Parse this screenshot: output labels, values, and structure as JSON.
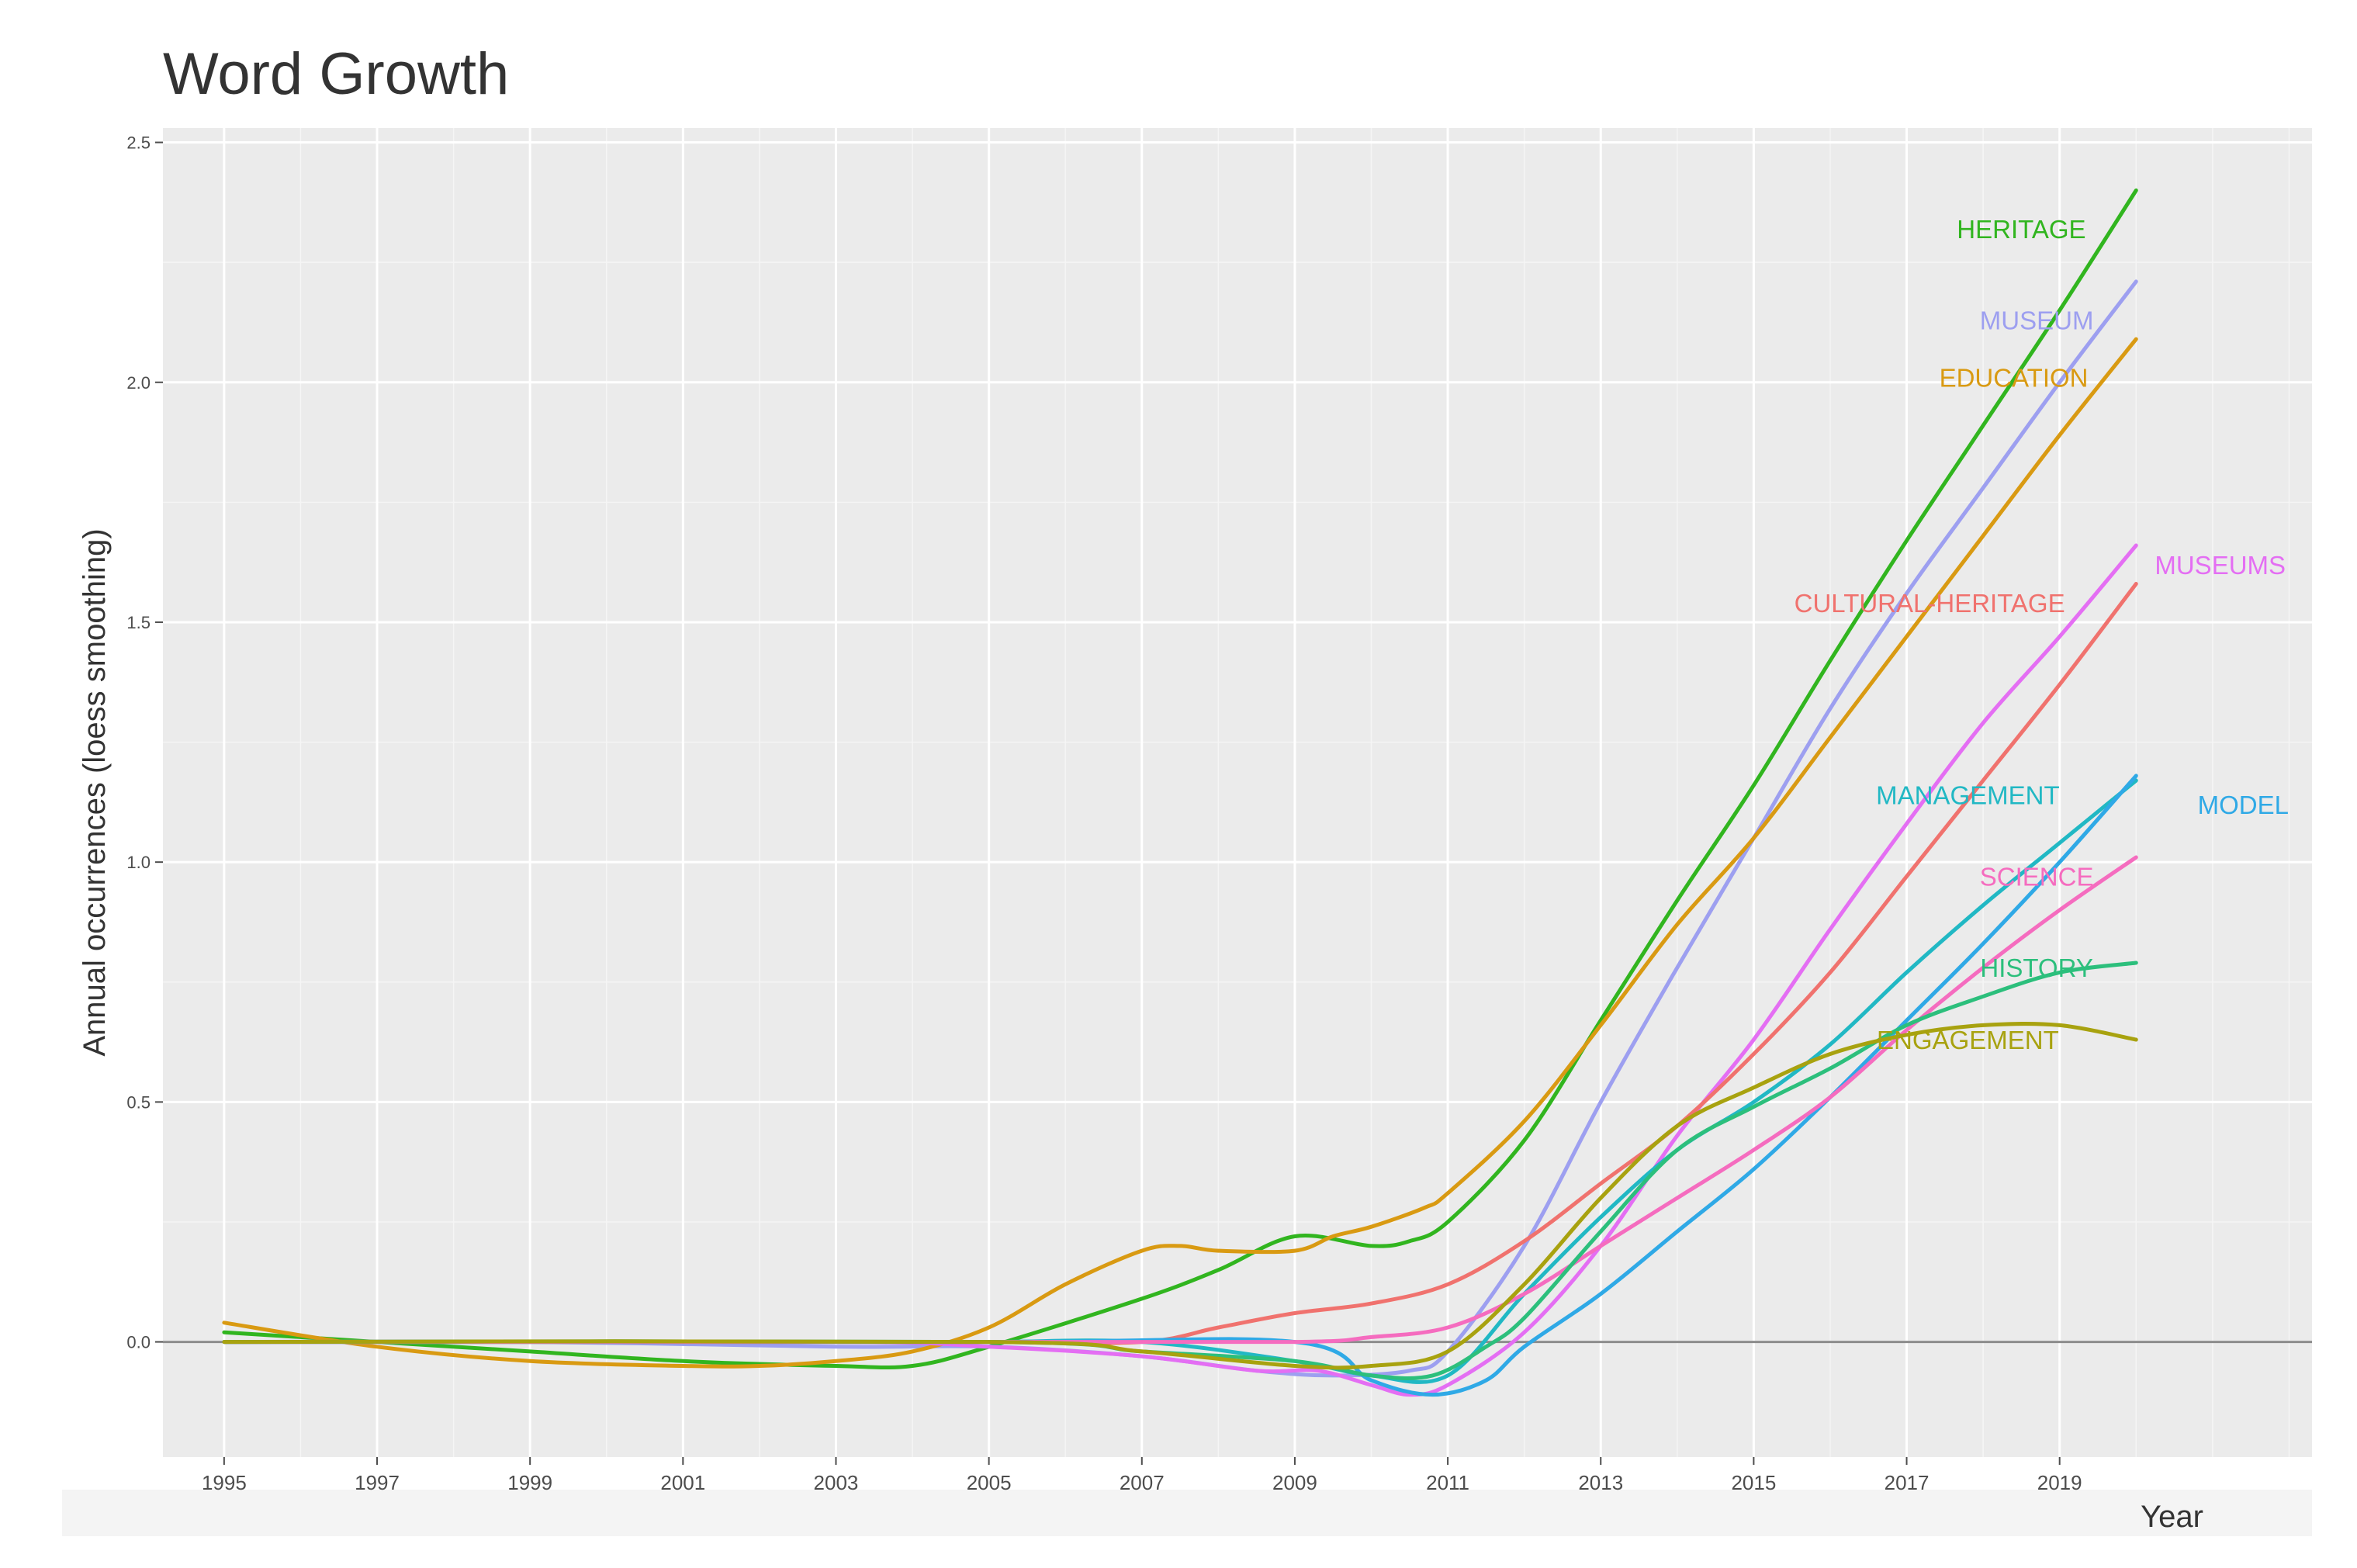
{
  "chart_data": {
    "type": "line",
    "title": "Word Growth",
    "xlabel": "Year",
    "ylabel": "Annual occurrences (loess smoothing)",
    "xlim": [
      1994.2,
      2022.3
    ],
    "ylim": [
      -0.24,
      2.53
    ],
    "x_ticks": [
      "1995",
      "1997",
      "1999",
      "2001",
      "2003",
      "2005",
      "2007",
      "2009",
      "2011",
      "2013",
      "2015",
      "2017",
      "2019"
    ],
    "y_ticks": [
      "0.0",
      "0.5",
      "1.0",
      "1.5",
      "2.0",
      "2.5"
    ],
    "reference_line_y": 0,
    "series": [
      {
        "name": "HERITAGE",
        "color": "#31b51f",
        "points": [
          [
            1995,
            0.02
          ],
          [
            1997,
            0
          ],
          [
            1999,
            -0.02
          ],
          [
            2001,
            -0.04
          ],
          [
            2003,
            -0.05
          ],
          [
            2004,
            -0.05
          ],
          [
            2005,
            -0.01
          ],
          [
            2007,
            0.09
          ],
          [
            2008,
            0.15
          ],
          [
            2009,
            0.22
          ],
          [
            2010,
            0.2
          ],
          [
            2010.5,
            0.21
          ],
          [
            2011,
            0.25
          ],
          [
            2012,
            0.42
          ],
          [
            2013,
            0.67
          ],
          [
            2014,
            0.92
          ],
          [
            2015,
            1.16
          ],
          [
            2016,
            1.42
          ],
          [
            2017,
            1.67
          ],
          [
            2018,
            1.91
          ],
          [
            2019,
            2.15
          ],
          [
            2020,
            2.4
          ]
        ],
        "label_pos": [
          2018.5,
          2.32
        ],
        "label_anchor": "middle"
      },
      {
        "name": "MUSEUM",
        "color": "#9d9ff0",
        "points": [
          [
            1995,
            0
          ],
          [
            1999,
            0
          ],
          [
            2003,
            -0.01
          ],
          [
            2005,
            -0.01
          ],
          [
            2007,
            -0.03
          ],
          [
            2008.5,
            -0.06
          ],
          [
            2009.5,
            -0.07
          ],
          [
            2010.5,
            -0.06
          ],
          [
            2011,
            -0.02
          ],
          [
            2012,
            0.2
          ],
          [
            2013,
            0.5
          ],
          [
            2014,
            0.78
          ],
          [
            2015,
            1.05
          ],
          [
            2016,
            1.32
          ],
          [
            2017,
            1.56
          ],
          [
            2018,
            1.78
          ],
          [
            2019,
            2
          ],
          [
            2020,
            2.21
          ]
        ],
        "label_pos": [
          2018.7,
          2.13
        ],
        "label_anchor": "middle"
      },
      {
        "name": "EDUCATION",
        "color": "#d99a12",
        "points": [
          [
            1995,
            0.04
          ],
          [
            1997,
            -0.01
          ],
          [
            1999,
            -0.04
          ],
          [
            2001,
            -0.05
          ],
          [
            2002,
            -0.05
          ],
          [
            2003,
            -0.04
          ],
          [
            2004,
            -0.02
          ],
          [
            2005,
            0.03
          ],
          [
            2006,
            0.12
          ],
          [
            2007,
            0.19
          ],
          [
            2007.5,
            0.2
          ],
          [
            2008,
            0.19
          ],
          [
            2009,
            0.19
          ],
          [
            2009.5,
            0.22
          ],
          [
            2010,
            0.24
          ],
          [
            2010.7,
            0.28
          ],
          [
            2011,
            0.31
          ],
          [
            2012,
            0.46
          ],
          [
            2013,
            0.66
          ],
          [
            2014,
            0.87
          ],
          [
            2015,
            1.05
          ],
          [
            2016,
            1.26
          ],
          [
            2017,
            1.47
          ],
          [
            2018,
            1.68
          ],
          [
            2019,
            1.89
          ],
          [
            2020,
            2.09
          ]
        ],
        "label_pos": [
          2018.4,
          2.01
        ],
        "label_anchor": "middle"
      },
      {
        "name": "MUSEUMS",
        "color": "#e46ef3",
        "points": [
          [
            1995,
            0
          ],
          [
            2003,
            0
          ],
          [
            2005,
            -0.01
          ],
          [
            2007,
            -0.03
          ],
          [
            2008.5,
            -0.06
          ],
          [
            2009.3,
            -0.06
          ],
          [
            2010,
            -0.09
          ],
          [
            2010.5,
            -0.11
          ],
          [
            2011,
            -0.09
          ],
          [
            2012,
            0.02
          ],
          [
            2013,
            0.2
          ],
          [
            2014,
            0.43
          ],
          [
            2015,
            0.63
          ],
          [
            2016,
            0.86
          ],
          [
            2017,
            1.08
          ],
          [
            2018,
            1.29
          ],
          [
            2019,
            1.47
          ],
          [
            2020,
            1.66
          ]
        ],
        "label_pos": [
          2021.1,
          1.62
        ],
        "label_anchor": "middle"
      },
      {
        "name": "CULTURAL-HERITAGE",
        "color": "#f0726e",
        "points": [
          [
            1995,
            0
          ],
          [
            2003,
            0
          ],
          [
            2005,
            0
          ],
          [
            2007,
            0
          ],
          [
            2008,
            0.03
          ],
          [
            2009,
            0.06
          ],
          [
            2010,
            0.08
          ],
          [
            2011,
            0.12
          ],
          [
            2012,
            0.21
          ],
          [
            2013,
            0.33
          ],
          [
            2014,
            0.45
          ],
          [
            2015,
            0.6
          ],
          [
            2016,
            0.77
          ],
          [
            2017,
            0.97
          ],
          [
            2018,
            1.17
          ],
          [
            2019,
            1.37
          ],
          [
            2020,
            1.58
          ]
        ],
        "label_pos": [
          2017.3,
          1.54
        ],
        "label_anchor": "middle"
      },
      {
        "name": "MANAGEMENT",
        "color": "#21b8c4",
        "points": [
          [
            1995,
            0
          ],
          [
            2003,
            0
          ],
          [
            2005,
            0
          ],
          [
            2007,
            0
          ],
          [
            2009,
            -0.04
          ],
          [
            2010,
            -0.07
          ],
          [
            2011,
            -0.07
          ],
          [
            2012,
            0.1
          ],
          [
            2013,
            0.26
          ],
          [
            2014,
            0.4
          ],
          [
            2015,
            0.5
          ],
          [
            2016,
            0.62
          ],
          [
            2017,
            0.77
          ],
          [
            2018,
            0.91
          ],
          [
            2019,
            1.04
          ],
          [
            2020,
            1.17
          ]
        ],
        "label_pos": [
          2017.8,
          1.14
        ],
        "label_anchor": "middle"
      },
      {
        "name": "MODEL",
        "color": "#2fa9e6",
        "points": [
          [
            1995,
            0
          ],
          [
            2005,
            0
          ],
          [
            2009,
            0
          ],
          [
            2010,
            -0.08
          ],
          [
            2010.8,
            -0.11
          ],
          [
            2011.5,
            -0.08
          ],
          [
            2012,
            -0.01
          ],
          [
            2013,
            0.1
          ],
          [
            2014,
            0.23
          ],
          [
            2015,
            0.36
          ],
          [
            2016,
            0.51
          ],
          [
            2017,
            0.67
          ],
          [
            2018,
            0.83
          ],
          [
            2019,
            1
          ],
          [
            2020,
            1.18
          ]
        ],
        "label_pos": [
          2021.4,
          1.12
        ],
        "label_anchor": "middle"
      },
      {
        "name": "SCIENCE",
        "color": "#f56cbf",
        "points": [
          [
            1995,
            0
          ],
          [
            2005,
            0
          ],
          [
            2009,
            0
          ],
          [
            2010,
            0.01
          ],
          [
            2011,
            0.03
          ],
          [
            2012,
            0.1
          ],
          [
            2013,
            0.2
          ],
          [
            2014,
            0.3
          ],
          [
            2015,
            0.4
          ],
          [
            2016,
            0.51
          ],
          [
            2017,
            0.65
          ],
          [
            2018,
            0.78
          ],
          [
            2019,
            0.9
          ],
          [
            2020,
            1.01
          ]
        ],
        "label_pos": [
          2018.7,
          0.97
        ],
        "label_anchor": "middle"
      },
      {
        "name": "HISTORY",
        "color": "#2cbf7c",
        "points": [
          [
            1995,
            0
          ],
          [
            2005,
            0
          ],
          [
            2007,
            -0.02
          ],
          [
            2009,
            -0.04
          ],
          [
            2010,
            -0.07
          ],
          [
            2010.8,
            -0.07
          ],
          [
            2011.5,
            -0.01
          ],
          [
            2012,
            0.05
          ],
          [
            2013,
            0.23
          ],
          [
            2014,
            0.4
          ],
          [
            2015,
            0.49
          ],
          [
            2016,
            0.57
          ],
          [
            2017,
            0.66
          ],
          [
            2018,
            0.72
          ],
          [
            2019,
            0.77
          ],
          [
            2020,
            0.79
          ]
        ],
        "label_pos": [
          2018.7,
          0.78
        ],
        "label_anchor": "middle"
      },
      {
        "name": "ENGAGEMENT",
        "color": "#a8a20f",
        "points": [
          [
            1995,
            0
          ],
          [
            2005,
            0
          ],
          [
            2007,
            -0.02
          ],
          [
            2009,
            -0.05
          ],
          [
            2010,
            -0.05
          ],
          [
            2011,
            -0.02
          ],
          [
            2012,
            0.12
          ],
          [
            2013,
            0.3
          ],
          [
            2014,
            0.45
          ],
          [
            2015,
            0.53
          ],
          [
            2016,
            0.6
          ],
          [
            2017,
            0.64
          ],
          [
            2018,
            0.66
          ],
          [
            2019,
            0.66
          ],
          [
            2020,
            0.63
          ]
        ],
        "label_pos": [
          2017.8,
          0.63
        ],
        "label_anchor": "middle"
      }
    ]
  }
}
